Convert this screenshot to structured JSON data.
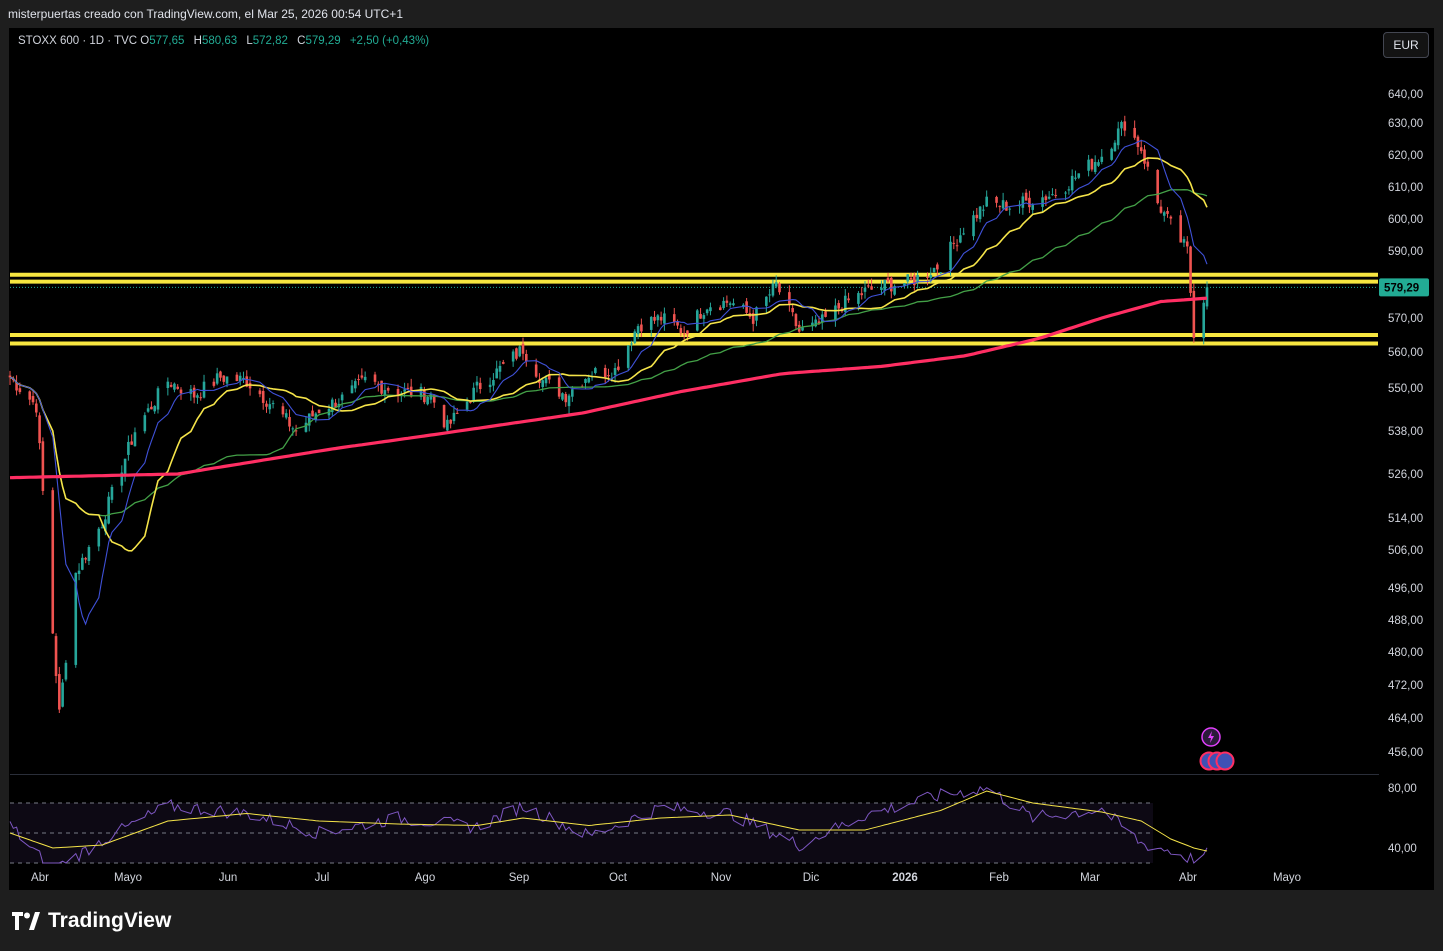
{
  "header": {
    "credit": "misterpuertas creado con TradingView.com, el Mar 25, 2026 00:54 UTC+1"
  },
  "legend": {
    "symbol": "STOXX 600 · 1D · TVC",
    "open_label": "O",
    "open": "577,65",
    "high_label": "H",
    "high": "580,63",
    "low_label": "L",
    "low": "572,82",
    "close_label": "C",
    "close": "579,29",
    "change": "+2,50 (+0,43%)"
  },
  "currency_button": "EUR",
  "last_price_label": "579,29",
  "brand": "TradingView",
  "colors": {
    "up": "#26a69a",
    "down": "#ef5350",
    "ma_short": "#3f51d8",
    "ma_medium": "#f5e449",
    "ma_long": "#43a047",
    "ma_200": "#ff2e63",
    "support_lines": "#f7e640",
    "rsi": "#7e57c2",
    "rsi_ma": "#f5e449",
    "price_badge": "#22ab94"
  },
  "icons": [
    "tradingview-logo-icon",
    "lightning-event-icon",
    "dividend-icons"
  ],
  "chart_data": [
    {
      "type": "candlestick",
      "title": "",
      "y_ticks": [
        "640,00",
        "630,00",
        "620,00",
        "610,00",
        "600,00",
        "590,00",
        "580,00",
        "570,00",
        "560,00",
        "550,00",
        "538,00",
        "526,00",
        "514,00",
        "506,00",
        "496,00",
        "488,00",
        "480,00",
        "472,00",
        "464,00",
        "456,00"
      ],
      "ylim": [
        450,
        648
      ],
      "y_scale": "log",
      "x_ticks": [
        "Abr",
        "Mayo",
        "Jun",
        "Jul",
        "Ago",
        "Sep",
        "Oct",
        "Nov",
        "Dic",
        "2026",
        "Feb",
        "Mar",
        "Abr",
        "Mayo"
      ],
      "x_range": [
        "2025-03-25",
        "2026-05-15"
      ],
      "horizontal_levels": [
        583,
        581,
        565,
        562.5
      ],
      "last_close": 579.29,
      "ma_200": {
        "x": [
          "2025-03-25",
          "2025-05-15",
          "2025-07-01",
          "2025-08-01",
          "2025-09-15",
          "2025-10-15",
          "2025-11-15",
          "2025-12-15",
          "2026-01-10",
          "2026-02-01",
          "2026-02-20",
          "2026-03-10",
          "2026-03-24"
        ],
        "y": [
          525,
          526,
          533,
          537,
          543,
          549,
          554,
          556,
          559,
          564,
          570,
          575,
          576
        ]
      },
      "series": [
        {
          "name": "",
          "x": [
            "2025-03-25",
            "2025-04-02",
            "2025-04-07",
            "2025-04-09",
            "2025-04-14",
            "2025-04-22",
            "2025-05-02",
            "2025-05-12",
            "2025-05-20",
            "2025-05-28",
            "2025-06-05",
            "2025-06-13",
            "2025-06-20",
            "2025-06-27",
            "2025-07-04",
            "2025-07-11",
            "2025-07-21",
            "2025-07-31",
            "2025-08-05",
            "2025-08-14",
            "2025-08-22",
            "2025-08-28",
            "2025-09-03",
            "2025-09-10",
            "2025-09-17",
            "2025-09-25",
            "2025-10-02",
            "2025-10-09",
            "2025-10-16",
            "2025-10-23",
            "2025-10-30",
            "2025-11-06",
            "2025-11-13",
            "2025-11-20",
            "2025-11-26",
            "2025-12-03",
            "2025-12-10",
            "2025-12-17",
            "2025-12-24",
            "2026-01-02",
            "2026-01-09",
            "2026-01-16",
            "2026-01-23",
            "2026-01-30",
            "2026-02-06",
            "2026-02-13",
            "2026-02-20",
            "2026-02-27",
            "2026-03-04",
            "2026-03-09",
            "2026-03-13",
            "2026-03-18",
            "2026-03-20",
            "2026-03-24"
          ],
          "y": [
            553,
            545,
            485,
            465,
            500,
            513,
            538,
            552,
            548,
            553,
            552,
            545,
            538,
            544,
            547,
            552,
            549,
            548,
            539,
            550,
            556,
            561,
            552,
            548,
            554,
            555,
            568,
            570,
            566,
            574,
            575,
            570,
            580,
            566,
            568,
            574,
            578,
            580,
            581,
            586,
            597,
            605,
            604,
            606,
            608,
            614,
            620,
            630,
            622,
            605,
            598,
            590,
            566,
            579.29
          ]
        }
      ],
      "rsi": {
        "y_ticks": [
          "80,00",
          "40,00"
        ],
        "ylim": [
          28,
          88
        ],
        "bands": [
          70,
          30
        ],
        "x": [
          "2025-03-25",
          "2025-04-07",
          "2025-04-22",
          "2025-05-12",
          "2025-06-05",
          "2025-06-27",
          "2025-07-21",
          "2025-08-14",
          "2025-08-28",
          "2025-09-17",
          "2025-10-09",
          "2025-10-30",
          "2025-11-20",
          "2025-12-10",
          "2026-01-02",
          "2026-01-16",
          "2026-01-30",
          "2026-02-20",
          "2026-03-04",
          "2026-03-13",
          "2026-03-20",
          "2026-03-24"
        ],
        "y": [
          55,
          25,
          45,
          68,
          63,
          50,
          60,
          54,
          68,
          48,
          67,
          63,
          42,
          62,
          75,
          80,
          60,
          66,
          43,
          38,
          32,
          36
        ]
      },
      "rsi_ma": {
        "x": [
          "2025-03-25",
          "2025-04-07",
          "2025-04-22",
          "2025-05-12",
          "2025-06-05",
          "2025-06-27",
          "2025-07-21",
          "2025-08-14",
          "2025-08-28",
          "2025-09-17",
          "2025-10-09",
          "2025-10-30",
          "2025-11-20",
          "2025-12-10",
          "2026-01-02",
          "2026-01-16",
          "2026-01-30",
          "2026-02-20",
          "2026-03-04",
          "2026-03-13",
          "2026-03-20",
          "2026-03-24"
        ],
        "y": [
          50,
          40,
          42,
          58,
          63,
          58,
          56,
          55,
          60,
          55,
          60,
          62,
          52,
          52,
          65,
          78,
          70,
          64,
          58,
          46,
          40,
          38
        ]
      }
    }
  ]
}
